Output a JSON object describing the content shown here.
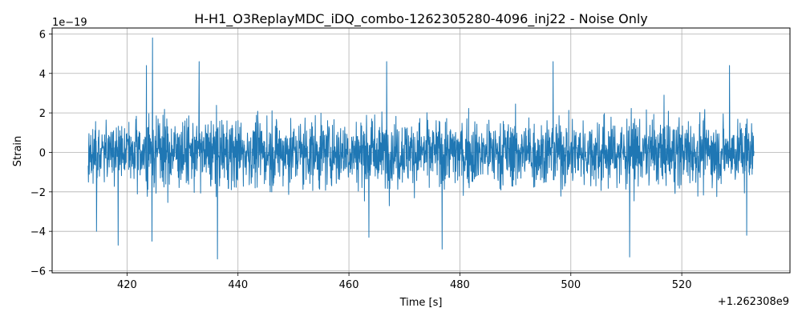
{
  "chart_data": {
    "type": "line",
    "title": "H-H1_O3ReplayMDC_iDQ_combo-1262305280-4096_inj22 - Noise Only",
    "xlabel": "Time [s]",
    "ylabel": "Strain",
    "x_offset_label": "+1.262308e9",
    "y_multiplier_label": "1e−19",
    "xlim": [
      406.5,
      539.5
    ],
    "ylim": [
      -6.1,
      6.3
    ],
    "x_range": [
      413.0,
      533.0
    ],
    "grid": true,
    "line_color": "#1f77b4",
    "x_ticks": [
      420,
      440,
      460,
      480,
      500,
      520
    ],
    "x_tick_labels": [
      "420",
      "440",
      "460",
      "480",
      "500",
      "520"
    ],
    "y_ticks": [
      -6,
      -4,
      -2,
      0,
      2,
      4,
      6
    ],
    "y_tick_labels": [
      "−6",
      "−4",
      "−2",
      "0",
      "2",
      "4",
      "6"
    ],
    "series": [
      {
        "noise_sigma": 0.85,
        "notable_extremes": [
          {
            "x": 424.6,
            "y": 5.8
          },
          {
            "x": 436.3,
            "y": -5.4
          },
          {
            "x": 510.6,
            "y": -5.3
          },
          {
            "x": 466.8,
            "y": 4.6
          },
          {
            "x": 476.8,
            "y": -4.9
          },
          {
            "x": 423.5,
            "y": 4.4
          },
          {
            "x": 433.0,
            "y": 4.6
          },
          {
            "x": 418.4,
            "y": -4.7
          },
          {
            "x": 424.5,
            "y": -4.5
          },
          {
            "x": 496.8,
            "y": 4.6
          },
          {
            "x": 531.7,
            "y": -4.2
          },
          {
            "x": 414.5,
            "y": -4.0
          },
          {
            "x": 528.6,
            "y": 4.4
          },
          {
            "x": 463.6,
            "y": -4.3
          }
        ]
      }
    ]
  }
}
